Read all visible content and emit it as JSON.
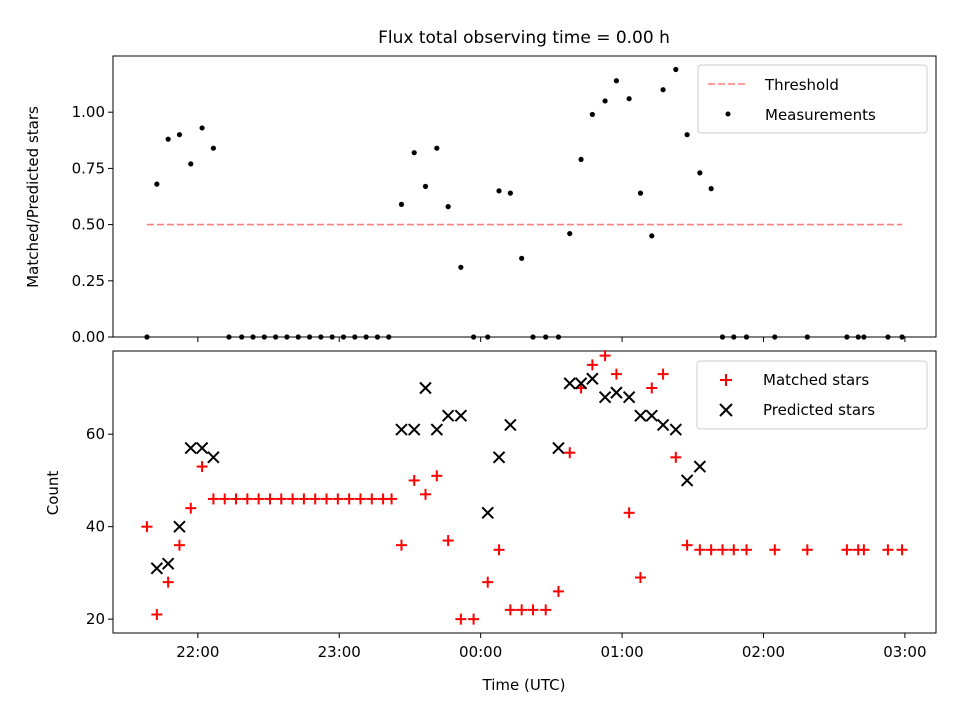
{
  "chart_data": [
    {
      "type": "scatter",
      "title": "Flux total observing time = 0.00 h",
      "xlabel": "",
      "ylabel": "Matched/Predicted stars",
      "ylim": [
        0,
        1.25
      ],
      "yticks": [
        0.0,
        0.25,
        0.5,
        0.75,
        1.0
      ],
      "ytick_labels": [
        "0.00",
        "0.25",
        "0.50",
        "0.75",
        "1.00"
      ],
      "xlim_hours": [
        -2.6,
        3.22
      ],
      "xticks_hours": [
        -2,
        -1,
        0,
        1,
        2,
        3
      ],
      "x_units": "hours relative to 00:00 UTC",
      "legend_position": "upper right",
      "threshold": {
        "name": "Threshold",
        "value": 0.5,
        "x_range": [
          -2.36,
          2.98
        ],
        "color": "#ff7f7f",
        "style": "dashed"
      },
      "series": [
        {
          "name": "Measurements",
          "marker": "dot",
          "color": "#000000",
          "x": [
            -2.36,
            -2.29,
            -2.21,
            -2.13,
            -2.05,
            -1.97,
            -1.89,
            -1.78,
            -1.69,
            -1.61,
            -1.53,
            -1.45,
            -1.37,
            -1.29,
            -1.21,
            -1.13,
            -1.05,
            -0.97,
            -0.89,
            -0.81,
            -0.73,
            -0.65,
            -0.56,
            -0.47,
            -0.39,
            -0.31,
            -0.23,
            -0.14,
            -0.05,
            0.05,
            0.13,
            0.21,
            0.29,
            0.37,
            0.46,
            0.55,
            0.63,
            0.71,
            0.79,
            0.88,
            0.96,
            1.05,
            1.13,
            1.21,
            1.29,
            1.38,
            1.46,
            1.55,
            1.63,
            1.71,
            1.79,
            1.88,
            2.08,
            2.31,
            2.59,
            2.67,
            2.71,
            2.88,
            2.98
          ],
          "y": [
            0.0,
            0.68,
            0.88,
            0.9,
            0.77,
            0.93,
            0.84,
            0.0,
            0.0,
            0.0,
            0.0,
            0.0,
            0.0,
            0.0,
            0.0,
            0.0,
            0.0,
            0.0,
            0.0,
            0.0,
            0.0,
            0.0,
            0.59,
            0.82,
            0.67,
            0.84,
            0.58,
            0.31,
            0.0,
            0.0,
            0.65,
            0.64,
            0.35,
            0.0,
            0.0,
            0.0,
            0.46,
            0.79,
            0.99,
            1.05,
            1.14,
            1.06,
            0.64,
            0.45,
            1.1,
            1.19,
            0.9,
            0.73,
            0.66,
            0.0,
            0.0,
            0.0,
            0.0,
            0.0,
            0.0,
            0.0,
            0.0,
            0.0,
            0.0
          ]
        }
      ]
    },
    {
      "type": "scatter",
      "title": "",
      "xlabel": "Time (UTC)",
      "ylabel": "Count",
      "ylim": [
        17,
        78
      ],
      "yticks": [
        20,
        40,
        60
      ],
      "ytick_labels": [
        "20",
        "40",
        "60"
      ],
      "xlim_hours": [
        -2.6,
        3.22
      ],
      "xticks_hours": [
        -2,
        -1,
        0,
        1,
        2,
        3
      ],
      "xtick_labels": [
        "22:00",
        "23:00",
        "00:00",
        "01:00",
        "02:00",
        "03:00"
      ],
      "x_units": "hours relative to 00:00 UTC",
      "legend_position": "upper right",
      "series": [
        {
          "name": "Matched stars",
          "marker": "plus",
          "color": "#ff0000",
          "x": [
            -2.36,
            -2.29,
            -2.21,
            -2.13,
            -2.05,
            -1.97,
            -1.89,
            -1.81,
            -1.73,
            -1.65,
            -1.57,
            -1.49,
            -1.41,
            -1.33,
            -1.25,
            -1.17,
            -1.09,
            -1.01,
            -0.93,
            -0.85,
            -0.77,
            -0.69,
            -0.63,
            -0.56,
            -0.47,
            -0.39,
            -0.31,
            -0.23,
            -0.14,
            -0.05,
            0.05,
            0.13,
            0.21,
            0.29,
            0.37,
            0.46,
            0.55,
            0.63,
            0.71,
            0.79,
            0.88,
            0.96,
            1.05,
            1.13,
            1.21,
            1.29,
            1.38,
            1.46,
            1.55,
            1.63,
            1.71,
            1.79,
            1.88,
            2.08,
            2.31,
            2.59,
            2.67,
            2.71,
            2.88,
            2.98
          ],
          "y": [
            40,
            21,
            28,
            36,
            44,
            53,
            46,
            46,
            46,
            46,
            46,
            46,
            46,
            46,
            46,
            46,
            46,
            46,
            46,
            46,
            46,
            46,
            46,
            36,
            50,
            47,
            51,
            37,
            20,
            20,
            28,
            35,
            22,
            22,
            22,
            22,
            26,
            56,
            70,
            75,
            77,
            73,
            43,
            29,
            70,
            73,
            55,
            36,
            35,
            35,
            35,
            35,
            35,
            35,
            35,
            35,
            35,
            35,
            35,
            35
          ]
        },
        {
          "name": "Predicted stars",
          "marker": "x",
          "color": "#000000",
          "x": [
            -2.29,
            -2.21,
            -2.13,
            -2.05,
            -1.97,
            -1.89,
            -0.56,
            -0.47,
            -0.39,
            -0.31,
            -0.23,
            -0.14,
            0.05,
            0.13,
            0.21,
            0.55,
            0.63,
            0.71,
            0.79,
            0.88,
            0.96,
            1.05,
            1.13,
            1.21,
            1.29,
            1.38,
            1.46,
            1.55
          ],
          "y": [
            31,
            32,
            40,
            57,
            57,
            55,
            61,
            61,
            70,
            61,
            64,
            64,
            43,
            55,
            62,
            57,
            71,
            71,
            72,
            68,
            69,
            68,
            64,
            64,
            62,
            61,
            50,
            53
          ]
        }
      ]
    }
  ]
}
